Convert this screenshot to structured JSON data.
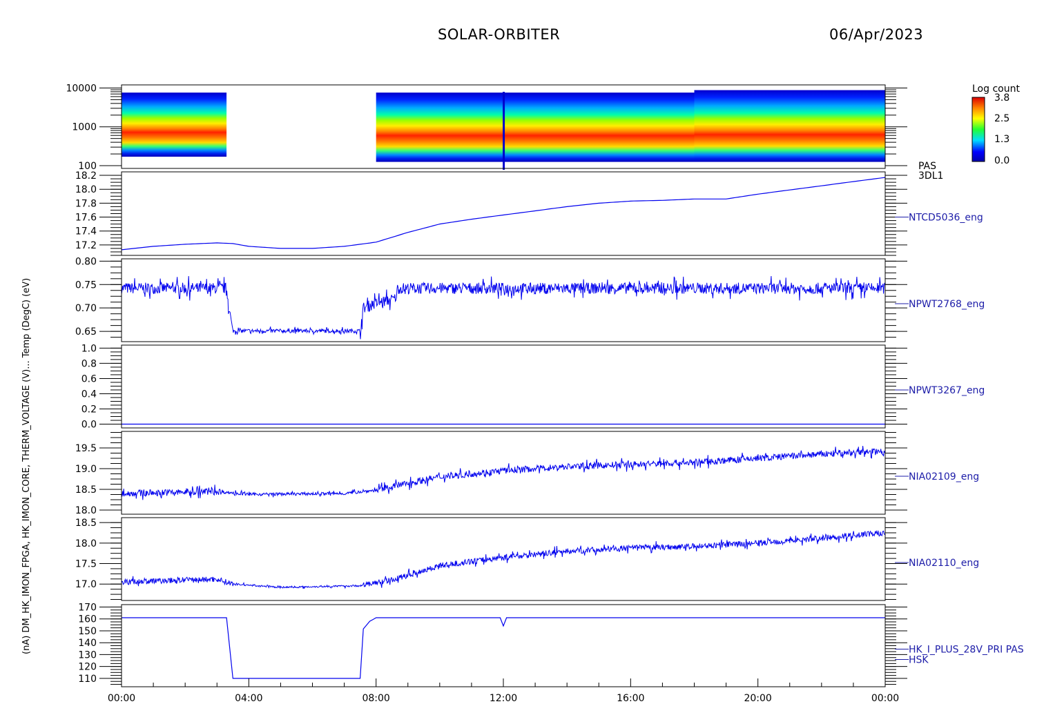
{
  "header": {
    "mission": "SOLAR-ORBITER",
    "date": "06/Apr/2023"
  },
  "colorbar": {
    "title": "Log count",
    "ticks": [
      "3.8",
      "2.5",
      "1.3",
      "0.0"
    ]
  },
  "colors": {
    "trace": "#0000ee",
    "label": "#1c1ca8",
    "axis": "#000000"
  },
  "x_axis": {
    "ticks": [
      "00:00",
      "04:00",
      "08:00",
      "12:00",
      "16:00",
      "20:00",
      "00:00"
    ]
  },
  "overlapping_ylabel": "(nA) DM_HK_IMON_FPGA, HK_IMON_CORE, THERM_VOLTAGE (V)... Temp (DegC) (eV)",
  "chart_data": [
    {
      "type": "heatmap",
      "panel_label": [
        "PAS",
        "3DL1"
      ],
      "yscale": "log",
      "ylim": [
        100,
        12000
      ],
      "y_ticks": [
        "10000",
        "1000",
        "100"
      ],
      "x_hours": [
        [
          0,
          3.3
        ],
        [
          8.0,
          18.0
        ],
        [
          18.0,
          24.0
        ]
      ],
      "peak_energy_ev": 700,
      "colormap": "rainbow",
      "zlim": [
        0.0,
        3.8
      ]
    },
    {
      "type": "line",
      "label": "NTCD5036_eng",
      "ylim": [
        17.05,
        18.25
      ],
      "y_ticks": [
        "18.2",
        "18.0",
        "17.8",
        "17.6",
        "17.4",
        "17.2"
      ],
      "x": [
        0,
        1,
        2,
        3,
        3.5,
        4,
        5,
        6,
        7,
        8,
        9,
        10,
        11,
        12,
        13,
        14,
        15,
        16,
        17,
        18,
        19,
        20,
        21,
        22,
        23,
        24
      ],
      "y": [
        17.13,
        17.18,
        17.21,
        17.23,
        17.22,
        17.18,
        17.15,
        17.15,
        17.18,
        17.24,
        17.38,
        17.5,
        17.57,
        17.63,
        17.69,
        17.75,
        17.8,
        17.83,
        17.84,
        17.86,
        17.86,
        17.93,
        17.99,
        18.05,
        18.11,
        18.17
      ]
    },
    {
      "type": "line",
      "label": "NPWT2768_eng",
      "ylim": [
        0.628,
        0.805
      ],
      "y_ticks": [
        "0.80",
        "0.75",
        "0.70",
        "0.65"
      ],
      "x": [
        0,
        3.3,
        3.4,
        3.5,
        7.5,
        7.6,
        8.0,
        8.6,
        8.7,
        24
      ],
      "y": [
        0.742,
        0.742,
        0.69,
        0.651,
        0.651,
        0.7,
        0.71,
        0.72,
        0.742,
        0.742
      ],
      "noise": 0.012
    },
    {
      "type": "line",
      "label": "NPWT3267_eng",
      "ylim": [
        -0.05,
        1.04
      ],
      "y_ticks": [
        "1.0",
        "0.8",
        "0.6",
        "0.4",
        "0.2",
        "0.0"
      ],
      "x": [
        0,
        24
      ],
      "y": [
        0.0,
        0.0
      ]
    },
    {
      "type": "line",
      "label": "NIA02109_eng",
      "ylim": [
        17.9,
        19.9
      ],
      "y_ticks": [
        "19.5",
        "19.0",
        "18.5",
        "18.0"
      ],
      "x": [
        0,
        3,
        4,
        7,
        8,
        9,
        10,
        12,
        14,
        16,
        18,
        20,
        22,
        24
      ],
      "y": [
        18.4,
        18.45,
        18.38,
        18.4,
        18.48,
        18.65,
        18.8,
        18.95,
        19.05,
        19.1,
        19.15,
        19.25,
        19.35,
        19.42
      ],
      "noise": 0.08
    },
    {
      "type": "line",
      "label": "NIA02110_eng",
      "ylim": [
        16.6,
        18.62
      ],
      "y_ticks": [
        "18.5",
        "18.0",
        "17.5",
        "17.0"
      ],
      "x": [
        0,
        3,
        3.5,
        5,
        7.5,
        8.5,
        10,
        12,
        14,
        16,
        18,
        20,
        22,
        24
      ],
      "y": [
        17.05,
        17.12,
        17.0,
        16.92,
        16.96,
        17.1,
        17.45,
        17.65,
        17.8,
        17.88,
        17.92,
        18.0,
        18.12,
        18.25
      ],
      "noise": 0.07
    },
    {
      "type": "line",
      "label": [
        "HK_I_PLUS_28V_PRI PAS",
        "HSK"
      ],
      "ylim": [
        103,
        172
      ],
      "y_ticks": [
        "170",
        "160",
        "150",
        "140",
        "130",
        "120",
        "110"
      ],
      "x": [
        0,
        3.35,
        3.45,
        7.5,
        7.55,
        7.8,
        8.0,
        11.95,
        12.0,
        12.05,
        12.1,
        24
      ],
      "y": [
        161,
        161,
        110,
        110,
        150,
        158,
        161,
        161,
        154,
        166,
        161,
        161
      ]
    }
  ]
}
